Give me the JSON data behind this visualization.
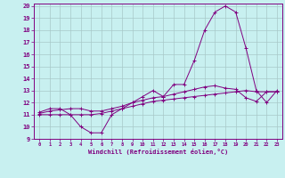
{
  "xlabel": "Windchill (Refroidissement éolien,°C)",
  "background_color": "#c8f0f0",
  "line_color": "#800080",
  "grid_color": "#a8c8c8",
  "xlim": [
    -0.5,
    23.5
  ],
  "ylim": [
    9,
    20.2
  ],
  "xticks": [
    0,
    1,
    2,
    3,
    4,
    5,
    6,
    7,
    8,
    9,
    10,
    11,
    12,
    13,
    14,
    15,
    16,
    17,
    18,
    19,
    20,
    21,
    22,
    23
  ],
  "yticks": [
    9,
    10,
    11,
    12,
    13,
    14,
    15,
    16,
    17,
    18,
    19,
    20
  ],
  "series1_x": [
    0,
    1,
    2,
    3,
    4,
    5,
    6,
    7,
    8,
    9,
    10,
    11,
    12,
    13,
    14,
    15,
    16,
    17,
    18,
    19,
    20,
    21,
    22,
    23
  ],
  "series1_y": [
    11.2,
    11.5,
    11.5,
    11.0,
    10.0,
    9.5,
    9.5,
    11.0,
    11.5,
    12.0,
    12.5,
    13.0,
    12.5,
    13.5,
    13.5,
    15.5,
    18.0,
    19.5,
    20.0,
    19.5,
    16.5,
    13.0,
    12.0,
    13.0
  ],
  "series2_x": [
    0,
    1,
    2,
    3,
    4,
    5,
    6,
    7,
    8,
    9,
    10,
    11,
    12,
    13,
    14,
    15,
    16,
    17,
    18,
    19,
    20,
    21,
    22,
    23
  ],
  "series2_y": [
    11.0,
    11.0,
    11.0,
    11.0,
    11.0,
    11.0,
    11.1,
    11.3,
    11.5,
    11.7,
    11.9,
    12.1,
    12.2,
    12.3,
    12.4,
    12.5,
    12.6,
    12.7,
    12.8,
    12.9,
    13.0,
    12.9,
    12.9,
    12.9
  ],
  "series3_x": [
    0,
    1,
    2,
    3,
    4,
    5,
    6,
    7,
    8,
    9,
    10,
    11,
    12,
    13,
    14,
    15,
    16,
    17,
    18,
    19,
    20,
    21,
    22,
    23
  ],
  "series3_y": [
    11.1,
    11.3,
    11.4,
    11.5,
    11.5,
    11.3,
    11.3,
    11.5,
    11.7,
    12.0,
    12.2,
    12.4,
    12.5,
    12.7,
    12.9,
    13.1,
    13.3,
    13.4,
    13.2,
    13.1,
    12.4,
    12.1,
    12.9,
    12.9
  ]
}
